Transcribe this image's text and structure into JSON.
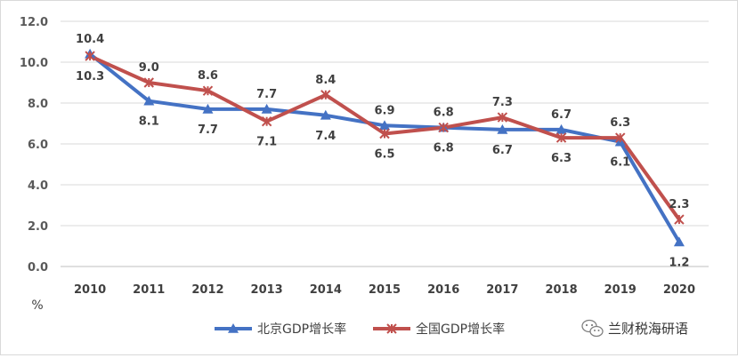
{
  "chart_data": {
    "type": "line",
    "x": [
      "2010",
      "2011",
      "2012",
      "2013",
      "2014",
      "2015",
      "2016",
      "2017",
      "2018",
      "2019",
      "2020"
    ],
    "series": [
      {
        "name": "北京GDP增长率",
        "values": [
          10.4,
          8.1,
          7.7,
          7.7,
          7.4,
          6.9,
          6.8,
          6.7,
          6.7,
          6.1,
          1.2
        ],
        "color": "#4472c4",
        "marker": "triangle"
      },
      {
        "name": "全国GDP增长率",
        "values": [
          10.3,
          9.0,
          8.6,
          7.1,
          8.4,
          6.5,
          6.8,
          7.3,
          6.3,
          6.3,
          2.3
        ],
        "color": "#c0504d",
        "marker": "star"
      }
    ],
    "yticks": [
      "0.0",
      "2.0",
      "4.0",
      "6.0",
      "8.0",
      "10.0",
      "12.0"
    ],
    "ylim": [
      0,
      12
    ],
    "unit_label": "%",
    "grid": true,
    "legend_position": "bottom-center"
  },
  "watermark": {
    "text": "兰财税海研语",
    "icon": "wechat-icon"
  }
}
